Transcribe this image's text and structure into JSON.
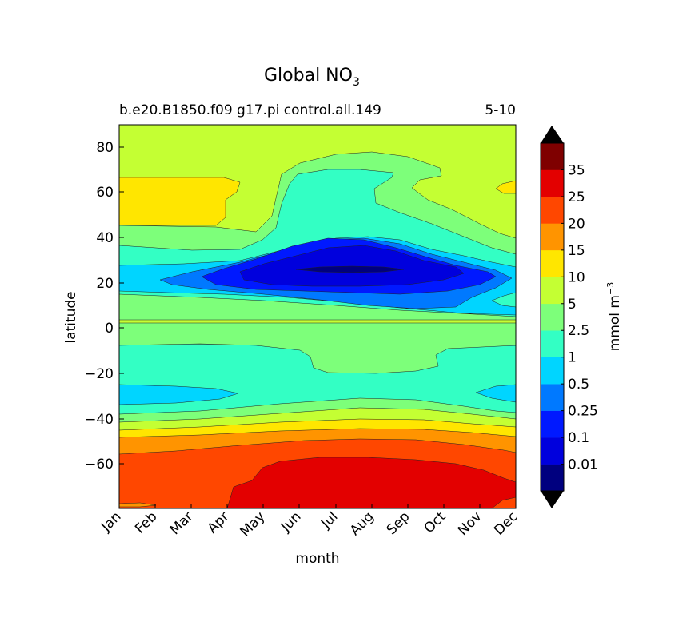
{
  "chart_data": {
    "type": "contourf",
    "title_main": "Global NO",
    "title_sub": "3",
    "case_name": "b.e20.B1850.f09 g17.pi control.all.149",
    "year_range": "5-10",
    "xlabel": "month",
    "ylabel": "latitude",
    "x_ticks": [
      "Jan",
      "Feb",
      "Mar",
      "Apr",
      "May",
      "Jun",
      "Jul",
      "Aug",
      "Sep",
      "Oct",
      "Nov",
      "Dec"
    ],
    "y_ticks": [
      80,
      60,
      40,
      20,
      0,
      -20,
      -40,
      -60
    ],
    "y_tick_labels": [
      "80",
      "60",
      "40",
      "20",
      "0",
      "−20",
      "−40",
      "−60"
    ],
    "ylim": [
      -79,
      90
    ],
    "colorbar": {
      "label_main": "mmol m",
      "label_exp": "−3",
      "levels": [
        0.01,
        0.1,
        0.25,
        0.5,
        1,
        2.5,
        5,
        10,
        15,
        20,
        25,
        35
      ],
      "level_labels": [
        "0.01",
        "0.1",
        "0.25",
        "0.5",
        "1",
        "2.5",
        "5",
        "10",
        "15",
        "20",
        "25",
        "35"
      ],
      "colors": [
        "#00007f",
        "#0000dd",
        "#0019ff",
        "#0079ff",
        "#00d5ff",
        "#33ffc4",
        "#7dff7a",
        "#c4ff33",
        "#ffe600",
        "#ff9400",
        "#ff4700",
        "#e30000",
        "#7f0000"
      ],
      "extend_min_color": "#000000",
      "extend_max_color": "#000000"
    },
    "regions": [
      {
        "latitude_band": "far south (<-55)",
        "months": "Jan-Dec",
        "level_band": "20-25",
        "peak_band": "25-35 (May-Dec)"
      },
      {
        "latitude_band": "-50 to -40",
        "months": "Jan-Dec",
        "level_band": "2.5-15"
      },
      {
        "latitude_band": "-35 to -5",
        "months": "Jan-Dec",
        "level_band": "1-2.5"
      },
      {
        "latitude_band": "-30 to -25",
        "months": "Jan-Apr, Nov-Dec",
        "level_band": "0.5-1"
      },
      {
        "latitude_band": "-5 to 5",
        "months": "Jan-Dec",
        "level_band": "2.5-5"
      },
      {
        "latitude_band": "15 to 35",
        "months": "Apr-Nov",
        "level_band": "0.01-0.25",
        "min_band": "<0.01 (Jul-Aug)"
      },
      {
        "latitude_band": "45 to 70",
        "months": "Jan-Apr",
        "level_band": "10-15"
      },
      {
        "latitude_band": "55 to 70",
        "months": "Jun-Sep",
        "level_band": "1-2.5"
      },
      {
        "latitude_band": "north (>70)",
        "months": "Jan-Dec",
        "level_band": "5-10"
      }
    ]
  }
}
